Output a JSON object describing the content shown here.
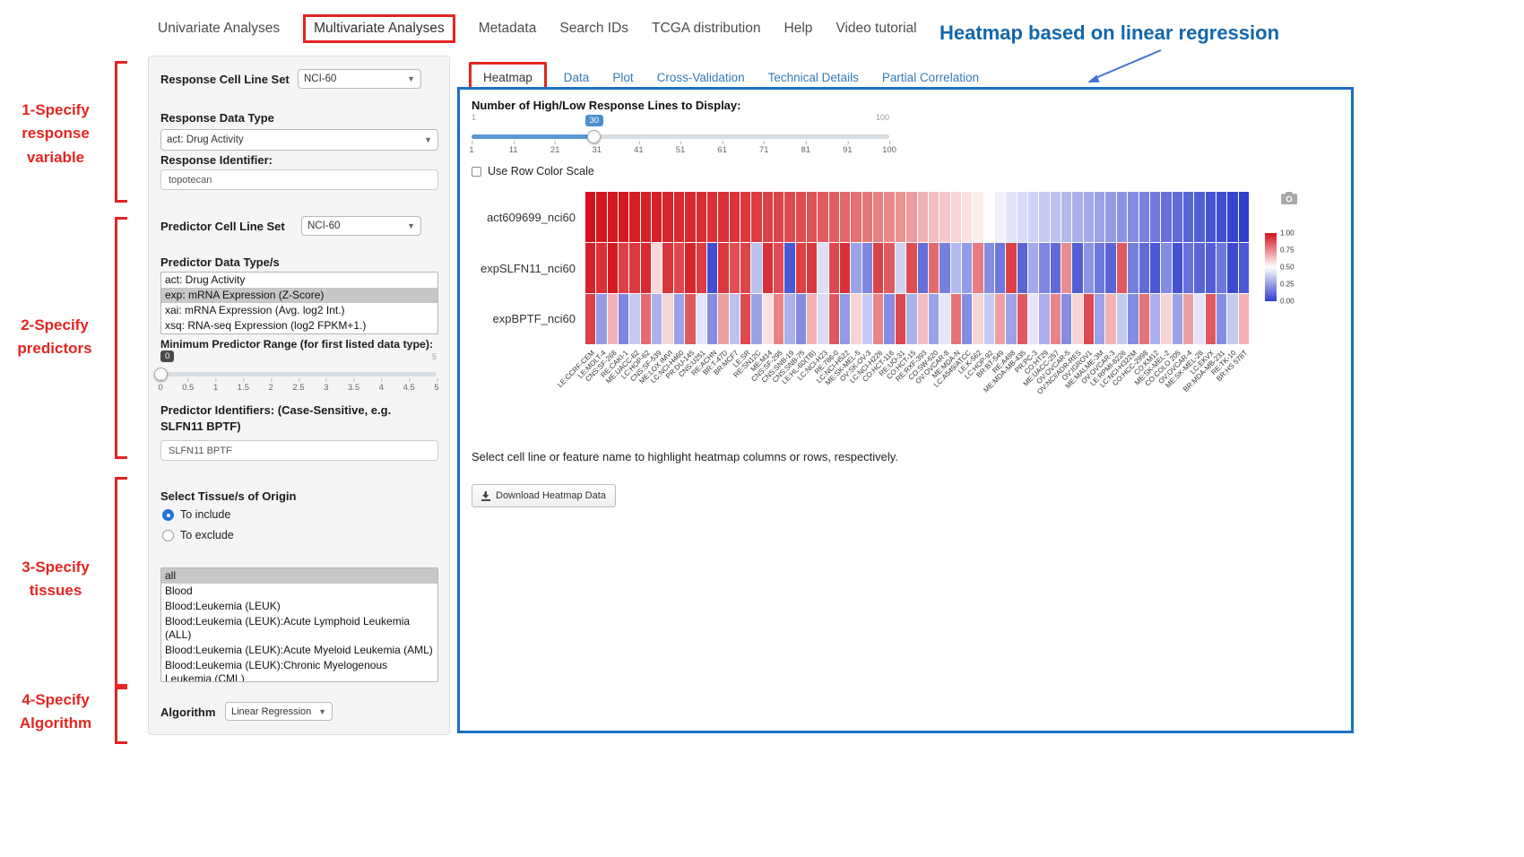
{
  "colors": {
    "annotation_red": "#e42522",
    "heading_blue": "#1266ab",
    "panel_border_blue": "#1b6fc1",
    "link_blue": "#337ab7"
  },
  "nav": {
    "items": [
      "Univariate Analyses",
      "Multivariate Analyses",
      "Metadata",
      "Search IDs",
      "TCGA distribution",
      "Help",
      "Video tutorial"
    ],
    "highlighted": "Multivariate Analyses"
  },
  "annotations": {
    "title": "Heatmap based on linear regression",
    "steps": [
      "1-Specify\nresponse\nvariable",
      "2-Specify\npredictors",
      "3-Specify\ntissues",
      "4-Specify\nAlgorithm"
    ]
  },
  "form": {
    "response_cell_line_set": {
      "label": "Response Cell Line Set",
      "value": "NCI-60"
    },
    "response_data_type": {
      "label": "Response Data Type",
      "value": "act: Drug Activity"
    },
    "response_identifier": {
      "label": "Response Identifier:",
      "value": "topotecan"
    },
    "predictor_cell_line_set": {
      "label": "Predictor Cell Line Set",
      "value": "NCI-60"
    },
    "predictor_data_types": {
      "label": "Predictor Data Type/s",
      "options": [
        "act: Drug Activity",
        "exp: mRNA Expression (Z-Score)",
        "xai: mRNA Expression (Avg. log2 Int.)",
        "xsq: RNA-seq Expression (log2 FPKM+1.)"
      ],
      "selected": "exp: mRNA Expression (Z-Score)"
    },
    "min_predictor_range": {
      "label": "Minimum Predictor Range (for first listed data type):",
      "value": 0,
      "min": 0,
      "max": 5,
      "ticks": [
        "0",
        "0.5",
        "1",
        "1.5",
        "2",
        "2.5",
        "3",
        "3.5",
        "4",
        "4.5",
        "5"
      ]
    },
    "predictor_identifiers": {
      "label": "Predictor Identifiers: (Case-Sensitive, e.g. SLFN11 BPTF)",
      "value": "SLFN11 BPTF"
    },
    "tissue_origin": {
      "label": "Select Tissue/s of Origin",
      "options": [
        {
          "label": "To include",
          "selected": true
        },
        {
          "label": "To exclude",
          "selected": false
        }
      ]
    },
    "tissues": {
      "options": [
        "all",
        "Blood",
        "Blood:Leukemia (LEUK)",
        "Blood:Leukemia (LEUK):Acute Lymphoid Leukemia (ALL)",
        "Blood:Leukemia (LEUK):Acute Myeloid Leukemia (AML)",
        "Blood:Leukemia (LEUK):Chronic Myelogenous Leukemia (CML)"
      ],
      "selected": "all"
    },
    "algorithm": {
      "label": "Algorithm",
      "value": "Linear Regression"
    }
  },
  "tabs": {
    "items": [
      "Heatmap",
      "Data",
      "Plot",
      "Cross-Validation",
      "Technical Details",
      "Partial Correlation"
    ],
    "active": "Heatmap"
  },
  "panel": {
    "slider_label": "Number of High/Low Response Lines to Display:",
    "slider": {
      "min": 1,
      "max": 100,
      "value": 30,
      "ticks": [
        "1",
        "11",
        "21",
        "31",
        "41",
        "51",
        "61",
        "71",
        "81",
        "91",
        "100"
      ]
    },
    "row_color_scale_label": "Use Row Color Scale",
    "hint": "Select cell line or feature name to highlight heatmap columns or rows, respectively.",
    "download_button": "Download Heatmap Data"
  },
  "chart_data": {
    "type": "heatmap",
    "rows": [
      "act609699_nci60",
      "expSLFN11_nci60",
      "expBPTF_nci60"
    ],
    "columns": [
      "LE:CCRF-CEM",
      "LE:MOLT-4",
      "CNS:SF-268",
      "RE:CAKI-1",
      "ME:UACC-62",
      "LC:HOP-62",
      "CNS:SF-539",
      "ME:LOX IMVI",
      "LC:NCI-H460",
      "PR:DU-145",
      "CNS:U251",
      "RE:ACHN",
      "BR:T-47D",
      "BR:MCF7",
      "LE:SR",
      "RE:SN12C",
      "ME:M14",
      "CNS:SF-295",
      "CNS:SNB-19",
      "CNS:SNB-75",
      "LE:HL-60(TB)",
      "LC:NCI-H23",
      "RE:786-0",
      "LC:NCI-H522",
      "ME:SK-MEL-5",
      "OV:SK-OV-3",
      "LC:NCI-H226",
      "CO:HCT-116",
      "RE:UO-31",
      "CO:HCT-15",
      "RE:RXF-393",
      "CO:SW-620",
      "OV:OVCAR-8",
      "ME:MDA-N",
      "LC:A549/ATCC",
      "LE:K-562",
      "LC:HOP-92",
      "BR:BT-549",
      "RE:A498",
      "ME:MDA-MB-435",
      "PR:PC-3",
      "CO:HT29",
      "ME:UACC-257",
      "OV:OVCAR-5",
      "OV:NCI/ADR-RES",
      "OV:IGROV1",
      "ME:MALME-3M",
      "OV:OVCAR-3",
      "LE:RPMI-8226",
      "LC:NCI-H322M",
      "CO:HCC-2998",
      "CO:KM12",
      "ME:SK-MEL-2",
      "CO:COLO 205",
      "OV:OVCAR-4",
      "ME:SK-MEL-28",
      "LC:EKVX",
      "BR:MDA-MB-231",
      "RE:TK-10",
      "BR:HS 578T"
    ],
    "values": [
      [
        1.0,
        0.99,
        0.98,
        0.98,
        0.97,
        0.96,
        0.96,
        0.95,
        0.94,
        0.94,
        0.93,
        0.92,
        0.92,
        0.91,
        0.9,
        0.89,
        0.88,
        0.87,
        0.86,
        0.85,
        0.84,
        0.82,
        0.81,
        0.79,
        0.77,
        0.75,
        0.73,
        0.71,
        0.69,
        0.67,
        0.62,
        0.6,
        0.58,
        0.56,
        0.54,
        0.52,
        0.5,
        0.48,
        0.46,
        0.44,
        0.42,
        0.4,
        0.38,
        0.36,
        0.34,
        0.32,
        0.3,
        0.28,
        0.26,
        0.24,
        0.21,
        0.19,
        0.16,
        0.14,
        0.12,
        0.1,
        0.07,
        0.05,
        0.02,
        0.0
      ],
      [
        0.96,
        0.92,
        0.98,
        0.88,
        0.9,
        0.94,
        0.55,
        0.91,
        0.86,
        0.95,
        0.89,
        0.05,
        0.9,
        0.84,
        0.87,
        0.38,
        0.92,
        0.85,
        0.08,
        0.88,
        0.9,
        0.45,
        0.86,
        0.92,
        0.3,
        0.22,
        0.88,
        0.82,
        0.42,
        0.85,
        0.15,
        0.78,
        0.2,
        0.36,
        0.28,
        0.74,
        0.24,
        0.18,
        0.88,
        0.12,
        0.32,
        0.22,
        0.14,
        0.7,
        0.1,
        0.26,
        0.18,
        0.12,
        0.82,
        0.2,
        0.14,
        0.08,
        0.24,
        0.06,
        0.16,
        0.12,
        0.1,
        0.18,
        0.04,
        0.08
      ],
      [
        0.88,
        0.28,
        0.62,
        0.22,
        0.4,
        0.78,
        0.34,
        0.56,
        0.3,
        0.82,
        0.46,
        0.24,
        0.66,
        0.38,
        0.86,
        0.3,
        0.54,
        0.72,
        0.34,
        0.24,
        0.62,
        0.44,
        0.82,
        0.28,
        0.56,
        0.4,
        0.72,
        0.24,
        0.86,
        0.34,
        0.6,
        0.3,
        0.46,
        0.76,
        0.24,
        0.56,
        0.4,
        0.66,
        0.3,
        0.82,
        0.46,
        0.34,
        0.72,
        0.24,
        0.56,
        0.86,
        0.3,
        0.62,
        0.4,
        0.24,
        0.76,
        0.34,
        0.56,
        0.3,
        0.66,
        0.46,
        0.82,
        0.24,
        0.4,
        0.62
      ]
    ],
    "colorscale": {
      "low": "#303ecd",
      "mid": "#ffffff",
      "high": "#d31219",
      "domain": [
        0,
        1
      ]
    },
    "legend_ticks": [
      "1.00",
      "0.75",
      "0.50",
      "0.25",
      "0.00"
    ]
  }
}
